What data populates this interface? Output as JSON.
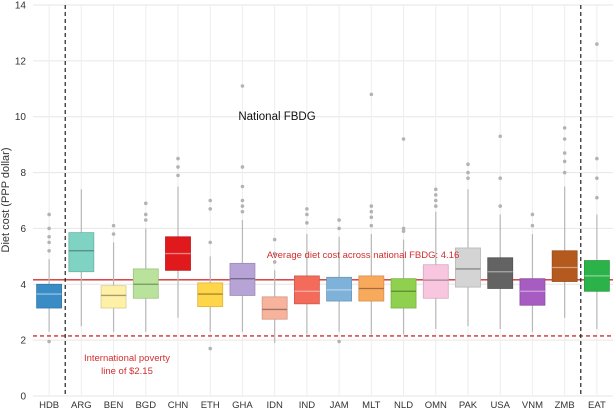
{
  "chart_data": {
    "type": "boxplot",
    "title": "",
    "xlabel": "",
    "ylabel": "Diet cost (PPP dollar)",
    "ylim": [
      0,
      14
    ],
    "yticks": [
      0,
      2,
      4,
      6,
      8,
      10,
      12,
      14
    ],
    "grid": true,
    "categories": [
      "HDB",
      "ARG",
      "BEN",
      "BGD",
      "CHN",
      "ETH",
      "GHA",
      "IDN",
      "IND",
      "JAM",
      "MLT",
      "NLD",
      "OMN",
      "PAK",
      "USA",
      "VNM",
      "ZMB",
      "EAT"
    ],
    "separators_after": [
      "HDB",
      "ZMB"
    ],
    "boxes": [
      {
        "name": "HDB",
        "color": "#3a8cc6",
        "whisker_low": 2.3,
        "q1": 3.15,
        "median": 3.65,
        "q3": 4.0,
        "whisker_high": 4.9,
        "outliers": [
          1.95,
          5.2,
          5.5,
          5.7,
          6.0,
          6.5
        ]
      },
      {
        "name": "ARG",
        "color": "#7fd3c3",
        "whisker_low": 2.5,
        "q1": 4.45,
        "median": 5.2,
        "q3": 5.85,
        "whisker_high": 7.4,
        "outliers": []
      },
      {
        "name": "BEN",
        "color": "#fff0a8",
        "whisker_low": 2.3,
        "q1": 3.15,
        "median": 3.6,
        "q3": 3.95,
        "whisker_high": 5.5,
        "outliers": [
          5.8,
          6.1
        ]
      },
      {
        "name": "BGD",
        "color": "#b9e39a",
        "whisker_low": 2.3,
        "q1": 3.5,
        "median": 4.0,
        "q3": 4.55,
        "whisker_high": 6.0,
        "outliers": [
          6.3,
          6.5,
          6.9
        ]
      },
      {
        "name": "CHN",
        "color": "#e0191c",
        "whisker_low": 2.8,
        "q1": 4.5,
        "median": 5.1,
        "q3": 5.7,
        "whisker_high": 7.5,
        "outliers": [
          7.9,
          8.2,
          8.5
        ]
      },
      {
        "name": "ETH",
        "color": "#ffd54a",
        "whisker_low": 2.3,
        "q1": 3.2,
        "median": 3.65,
        "q3": 4.05,
        "whisker_high": 5.0,
        "outliers": [
          1.7,
          5.5,
          6.7,
          7.0
        ]
      },
      {
        "name": "GHA",
        "color": "#b7a3d6",
        "whisker_low": 2.3,
        "q1": 3.6,
        "median": 4.2,
        "q3": 4.75,
        "whisker_high": 6.3,
        "outliers": [
          6.6,
          6.8,
          7.0,
          7.5,
          8.2,
          11.1
        ]
      },
      {
        "name": "IDN",
        "color": "#f7b39c",
        "whisker_low": 1.9,
        "q1": 2.75,
        "median": 3.1,
        "q3": 3.55,
        "whisker_high": 4.5,
        "outliers": [
          4.8,
          5.1,
          5.6
        ]
      },
      {
        "name": "IND",
        "color": "#f26b5b",
        "whisker_low": 2.2,
        "q1": 3.3,
        "median": 3.75,
        "q3": 4.3,
        "whisker_high": 5.8,
        "outliers": [
          6.2,
          6.5,
          6.7
        ]
      },
      {
        "name": "JAM",
        "color": "#7fb2d9",
        "whisker_low": 2.3,
        "q1": 3.4,
        "median": 3.8,
        "q3": 4.25,
        "whisker_high": 5.7,
        "outliers": [
          1.95,
          6.0,
          6.3
        ]
      },
      {
        "name": "MLT",
        "color": "#f9a95c",
        "whisker_low": 2.2,
        "q1": 3.4,
        "median": 3.85,
        "q3": 4.3,
        "whisker_high": 5.8,
        "outliers": [
          6.1,
          6.4,
          6.6,
          6.8,
          10.8
        ]
      },
      {
        "name": "NLD",
        "color": "#8fd14f",
        "whisker_low": 2.2,
        "q1": 3.15,
        "median": 3.75,
        "q3": 4.2,
        "whisker_high": 5.6,
        "outliers": [
          5.9,
          6.0,
          9.2
        ]
      },
      {
        "name": "OMN",
        "color": "#f9c6e0",
        "whisker_low": 2.4,
        "q1": 3.5,
        "median": 4.15,
        "q3": 4.7,
        "whisker_high": 6.6,
        "outliers": [
          6.8,
          7.0,
          7.2,
          7.4
        ]
      },
      {
        "name": "PAK",
        "color": "#d4d4d4",
        "whisker_low": 2.5,
        "q1": 3.9,
        "median": 4.55,
        "q3": 5.3,
        "whisker_high": 7.4,
        "outliers": [
          7.8,
          8.0,
          8.3
        ]
      },
      {
        "name": "USA",
        "color": "#636363",
        "whisker_low": 2.4,
        "q1": 3.85,
        "median": 4.45,
        "q3": 4.95,
        "whisker_high": 6.5,
        "outliers": [
          6.8,
          7.8,
          9.3
        ]
      },
      {
        "name": "VNM",
        "color": "#a65cc0",
        "whisker_low": 2.3,
        "q1": 3.25,
        "median": 3.75,
        "q3": 4.2,
        "whisker_high": 5.8,
        "outliers": [
          6.1,
          6.5
        ]
      },
      {
        "name": "ZMB",
        "color": "#b55a1e",
        "whisker_low": 2.8,
        "q1": 4.1,
        "median": 4.6,
        "q3": 5.2,
        "whisker_high": 7.5,
        "outliers": [
          8.0,
          8.4,
          8.7,
          9.2,
          9.6
        ]
      },
      {
        "name": "EAT",
        "color": "#2bb34a",
        "whisker_low": 2.4,
        "q1": 3.75,
        "median": 4.3,
        "q3": 4.85,
        "whisker_high": 6.5,
        "outliers": [
          7.1,
          7.8,
          8.5,
          12.6
        ]
      }
    ],
    "reference_lines": [
      {
        "value": 4.16,
        "color": "#d32f2f",
        "style": "solid",
        "label": "Average diet cost across national FBDG: 4.16"
      },
      {
        "value": 2.15,
        "color": "#d32f2f",
        "style": "dashed",
        "label": "International poverty line of $2.15"
      }
    ],
    "annotations": {
      "fbdg_title": "National FBDG",
      "poverty_label_line1": "International poverty",
      "poverty_label_line2": "line of $2.15"
    }
  }
}
